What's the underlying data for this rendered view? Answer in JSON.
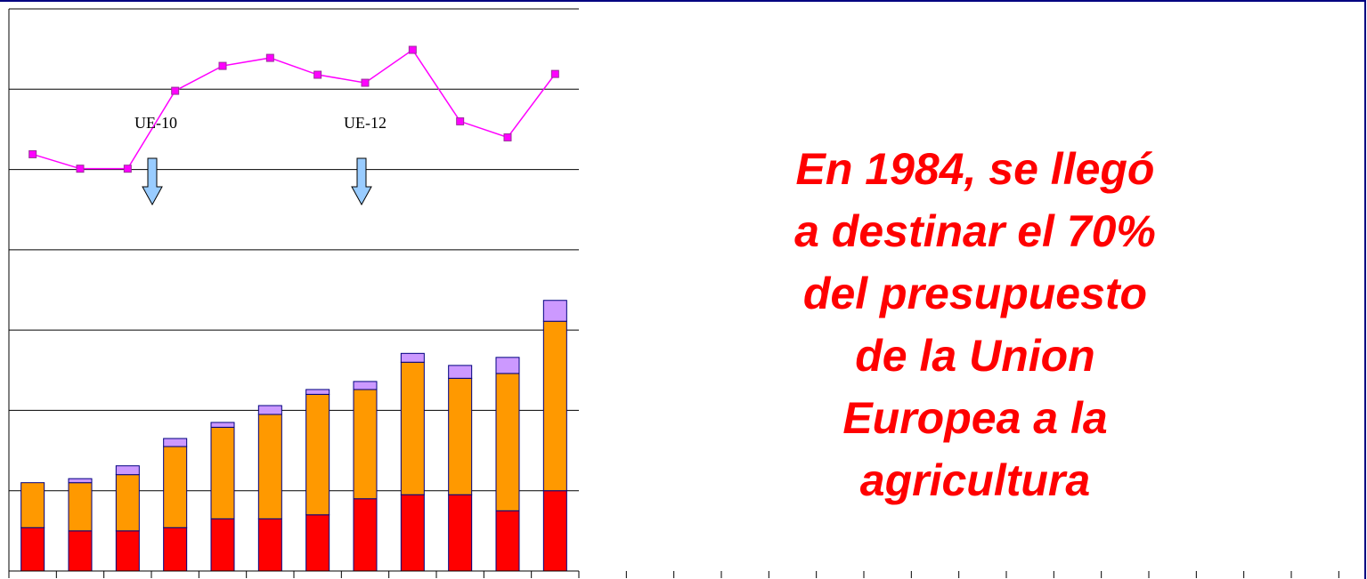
{
  "chart_data": {
    "type": "bar",
    "stacked": true,
    "grid": true,
    "categories": [
      null,
      null,
      null,
      null,
      null,
      null,
      null,
      null,
      null,
      null,
      null,
      null
    ],
    "ylim": [
      0,
      7
    ],
    "yticks": [
      0,
      1,
      2,
      3,
      4,
      5,
      6,
      7
    ],
    "series": [
      {
        "type": "bar",
        "color": "#ff0000",
        "values": [
          0.54,
          0.5,
          0.5,
          0.54,
          0.65,
          0.65,
          0.7,
          0.9,
          0.95,
          0.95,
          0.75,
          1.0
        ]
      },
      {
        "type": "bar",
        "color": "#ff9900",
        "values": [
          0.56,
          0.6,
          0.7,
          1.01,
          1.14,
          1.3,
          1.5,
          1.36,
          1.65,
          1.45,
          1.71,
          2.11
        ]
      },
      {
        "type": "bar",
        "color": "#cc99ff",
        "values": [
          0,
          0.05,
          0.11,
          0.1,
          0.06,
          0.11,
          0.06,
          0.1,
          0.11,
          0.16,
          0.2,
          0.26
        ]
      },
      {
        "type": "line",
        "color": "#ff00ff",
        "values": [
          5.19,
          5.01,
          5.01,
          5.98,
          6.29,
          6.39,
          6.18,
          6.08,
          6.49,
          5.6,
          5.4,
          6.19
        ]
      }
    ],
    "annotations": [
      "UE-10",
      "UE-12"
    ]
  },
  "callout": [
    "En 1984, se llegó",
    "a destinar el 70%",
    "del presupuesto",
    "de la Union",
    "Europea a la",
    "agricultura"
  ]
}
